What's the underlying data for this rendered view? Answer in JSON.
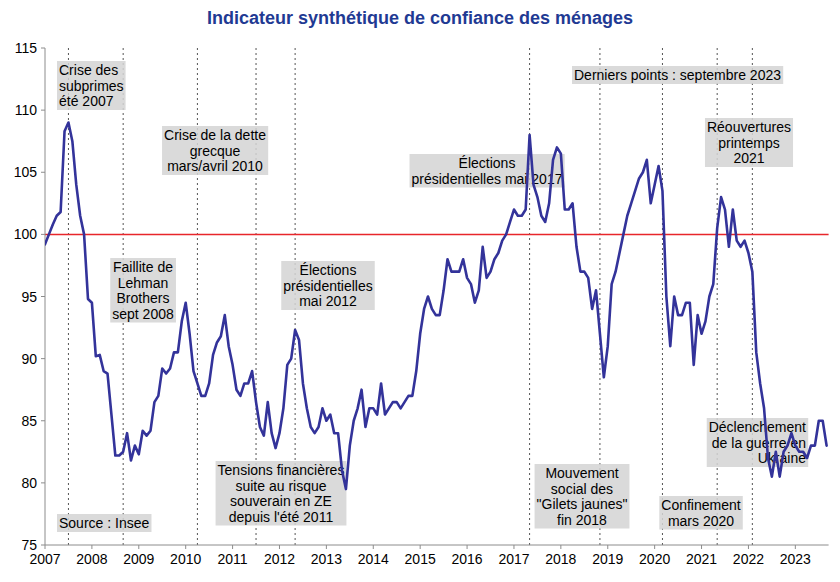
{
  "chart_data": {
    "type": "line",
    "title": "Indicateur synthétique de confiance des ménages",
    "source": "Source : Insee",
    "categories": [
      "2007",
      null,
      null,
      null,
      null,
      null,
      null,
      null,
      null,
      null,
      null,
      null,
      "2008",
      null,
      null,
      null,
      null,
      null,
      null,
      null,
      null,
      null,
      null,
      null,
      "2009",
      null,
      null,
      null,
      null,
      null,
      null,
      null,
      null,
      null,
      null,
      null,
      "2010",
      null,
      null,
      null,
      null,
      null,
      null,
      null,
      null,
      null,
      null,
      null,
      "2011",
      null,
      null,
      null,
      null,
      null,
      null,
      null,
      null,
      null,
      null,
      null,
      "2012",
      null,
      null,
      null,
      null,
      null,
      null,
      null,
      null,
      null,
      null,
      null,
      "2013",
      null,
      null,
      null,
      null,
      null,
      null,
      null,
      null,
      null,
      null,
      null,
      "2014",
      null,
      null,
      null,
      null,
      null,
      null,
      null,
      null,
      null,
      null,
      null,
      "2015",
      null,
      null,
      null,
      null,
      null,
      null,
      null,
      null,
      null,
      null,
      null,
      "2016",
      null,
      null,
      null,
      null,
      null,
      null,
      null,
      null,
      null,
      null,
      null,
      "2017",
      null,
      null,
      null,
      null,
      null,
      null,
      null,
      null,
      null,
      null,
      null,
      "2018",
      null,
      null,
      null,
      null,
      null,
      null,
      null,
      null,
      null,
      null,
      null,
      "2019",
      null,
      null,
      null,
      null,
      null,
      null,
      null,
      null,
      null,
      null,
      null,
      "2020",
      null,
      null,
      null,
      null,
      null,
      null,
      null,
      null,
      null,
      null,
      null,
      "2021",
      null,
      null,
      null,
      null,
      null,
      null,
      null,
      null,
      null,
      null,
      null,
      "2022",
      null,
      null,
      null,
      null,
      null,
      null,
      null,
      null,
      null,
      null,
      null,
      "2023",
      null,
      null,
      null,
      null,
      null,
      null,
      null,
      null
    ],
    "series": [
      {
        "name": "Indicateur synthétique de confiance des ménages",
        "color": "#33339a",
        "values": [
          99.2,
          100,
          100.8,
          101.5,
          101.8,
          108.3,
          109,
          107.5,
          104,
          101.5,
          100,
          94.8,
          94.5,
          90.2,
          90.3,
          89,
          88.8,
          85.5,
          82.2,
          82.2,
          82.5,
          84,
          81.8,
          83,
          82.3,
          84.2,
          83.8,
          84.2,
          86.5,
          87,
          89.2,
          88.8,
          89.2,
          90.5,
          90.5,
          93,
          94.5,
          92,
          89,
          88,
          87,
          87,
          88,
          90.3,
          91.3,
          91.8,
          93.5,
          91,
          89.5,
          87.5,
          87,
          88,
          88,
          89,
          86.5,
          84.5,
          83.8,
          86.5,
          84,
          82.8,
          84,
          86,
          89.5,
          90,
          92.3,
          91.5,
          88,
          86,
          84.5,
          84,
          84.5,
          86,
          85,
          85.5,
          84,
          84,
          81,
          79.5,
          83,
          85,
          86,
          87.5,
          84.5,
          86,
          86,
          85.5,
          88,
          85.5,
          86,
          86.5,
          86.5,
          86,
          86.5,
          87,
          87,
          89,
          92,
          94,
          95,
          94,
          93.5,
          93.5,
          95.5,
          98,
          97,
          97,
          97,
          98,
          96.5,
          96,
          94.5,
          95.5,
          99,
          96.5,
          97,
          98,
          98.5,
          99.5,
          100,
          101,
          102,
          101.5,
          101.5,
          102,
          108,
          104,
          103,
          101.5,
          101,
          102.5,
          106,
          107,
          106.5,
          102,
          102,
          102.5,
          99,
          97,
          97,
          96.5,
          94,
          95.5,
          92,
          88.5,
          91,
          96,
          97,
          98.5,
          100,
          101.5,
          102.5,
          103.5,
          104.5,
          105,
          106,
          102.5,
          104,
          105.5,
          103.5,
          95,
          91,
          95,
          93.5,
          93.5,
          94.5,
          94.5,
          89.5,
          93.5,
          92,
          93,
          95,
          96,
          100.5,
          103,
          102,
          99,
          102,
          99.5,
          99,
          99.5,
          98.5,
          97,
          90.5,
          88,
          86,
          82,
          80.5,
          82.5,
          80.5,
          82.5,
          83,
          84,
          83,
          82.5,
          82.5,
          82,
          83,
          83,
          85,
          85,
          83
        ]
      }
    ],
    "reference_line": 100,
    "ylim": [
      75,
      115
    ],
    "yticks": [
      75,
      80,
      85,
      90,
      95,
      100,
      105,
      110,
      115
    ],
    "grid": false,
    "annotations": [
      {
        "lines": [
          "Crise des",
          "subprimes",
          "été 2007"
        ],
        "index": 6
      },
      {
        "lines": [
          "Faillite de",
          "Lehman",
          "Brothers",
          "sept 2008"
        ],
        "index": 20
      },
      {
        "lines": [
          "Crise de la dette",
          "grecque",
          "mars/avril 2010"
        ],
        "index": 39
      },
      {
        "lines": [
          "Tensions financières",
          "suite au risque",
          "souverain en ZE",
          "depuis l'été 2011"
        ],
        "index": 54
      },
      {
        "lines": [
          "Élections",
          "présidentielles",
          "mai 2012"
        ],
        "index": 64
      },
      {
        "lines": [
          "Élections",
          "présidentielles mai 2017"
        ],
        "index": 124
      },
      {
        "lines": [
          "Mouvement",
          "social des",
          "\"Gilets jaunes\"",
          "fin 2018"
        ],
        "index": 142
      },
      {
        "lines": [
          "Confinement",
          "mars 2020"
        ],
        "index": 158
      },
      {
        "lines": [
          "Réouvertures",
          "printemps",
          "2021"
        ],
        "index": 172
      },
      {
        "lines": [
          "Déclenchement",
          "de la guerre en",
          "Ukraine"
        ],
        "index": 181
      },
      {
        "lines": [
          "Derniers points : septembre 2023"
        ]
      }
    ]
  }
}
